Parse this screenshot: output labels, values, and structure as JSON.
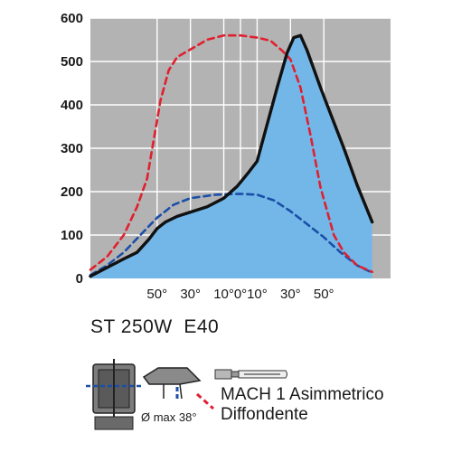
{
  "chart_data": {
    "type": "line",
    "title": "",
    "xlabel": "",
    "ylabel": "",
    "ylim": [
      0,
      600
    ],
    "yticks": [
      0,
      100,
      200,
      300,
      400,
      500,
      600
    ],
    "xlim": [
      -90,
      90
    ],
    "xticks": [
      {
        "value": -50,
        "label": "50°"
      },
      {
        "value": -30,
        "label": "30°"
      },
      {
        "value": -10,
        "label": "10°"
      },
      {
        "value": 0,
        "label": "0°"
      },
      {
        "value": 10,
        "label": "10°"
      },
      {
        "value": 30,
        "label": "30°"
      },
      {
        "value": 50,
        "label": "50°"
      }
    ],
    "grid": true,
    "colors": {
      "plot_bg": "#b3b3b3",
      "grid": "#ffffff",
      "fill": "#73b7e8"
    },
    "series": [
      {
        "style": "solid-black-filled",
        "color": "#111111",
        "points": [
          [
            -90,
            5
          ],
          [
            -80,
            25
          ],
          [
            -70,
            45
          ],
          [
            -62,
            60
          ],
          [
            -55,
            90
          ],
          [
            -50,
            115
          ],
          [
            -45,
            130
          ],
          [
            -38,
            143
          ],
          [
            -30,
            153
          ],
          [
            -20,
            165
          ],
          [
            -10,
            185
          ],
          [
            -2,
            212
          ],
          [
            5,
            245
          ],
          [
            10,
            270
          ],
          [
            16,
            355
          ],
          [
            22,
            440
          ],
          [
            28,
            520
          ],
          [
            32,
            555
          ],
          [
            36,
            560
          ],
          [
            40,
            525
          ],
          [
            48,
            440
          ],
          [
            55,
            370
          ],
          [
            62,
            300
          ],
          [
            70,
            215
          ],
          [
            79,
            130
          ]
        ]
      },
      {
        "style": "red-dashed",
        "color": "#e0202e",
        "points": [
          [
            -90,
            20
          ],
          [
            -80,
            50
          ],
          [
            -70,
            100
          ],
          [
            -62,
            165
          ],
          [
            -56,
            230
          ],
          [
            -52,
            320
          ],
          [
            -48,
            410
          ],
          [
            -43,
            480
          ],
          [
            -38,
            510
          ],
          [
            -30,
            528
          ],
          [
            -20,
            550
          ],
          [
            -10,
            560
          ],
          [
            0,
            560
          ],
          [
            10,
            555
          ],
          [
            18,
            548
          ],
          [
            25,
            525
          ],
          [
            30,
            505
          ],
          [
            36,
            440
          ],
          [
            42,
            330
          ],
          [
            48,
            210
          ],
          [
            56,
            100
          ],
          [
            62,
            60
          ],
          [
            70,
            30
          ],
          [
            79,
            15
          ]
        ]
      },
      {
        "style": "blue-dashed",
        "color": "#1a4fa8",
        "points": [
          [
            -90,
            8
          ],
          [
            -80,
            30
          ],
          [
            -70,
            60
          ],
          [
            -60,
            100
          ],
          [
            -50,
            140
          ],
          [
            -40,
            170
          ],
          [
            -30,
            185
          ],
          [
            -15,
            193
          ],
          [
            0,
            195
          ],
          [
            10,
            193
          ],
          [
            20,
            180
          ],
          [
            30,
            155
          ],
          [
            40,
            125
          ],
          [
            50,
            95
          ],
          [
            60,
            60
          ],
          [
            70,
            30
          ],
          [
            78,
            15
          ]
        ]
      }
    ]
  },
  "product": {
    "code": "ST 250W  E40"
  },
  "fixture": {
    "max_angle_label": "Ø max 38°"
  },
  "legend": {
    "optic_name": "MACH 1 Asimmetrico",
    "optic_sub": "Diffondente"
  }
}
